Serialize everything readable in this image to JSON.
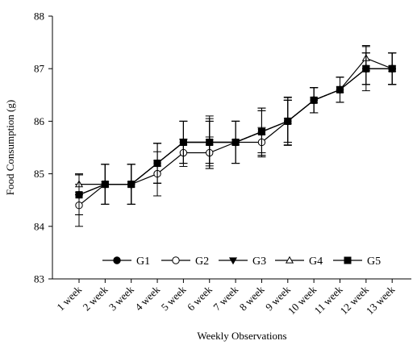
{
  "chart_data": {
    "type": "line",
    "title": "",
    "xlabel": "Weekly Observations",
    "ylabel": "Food Consumption (g)",
    "ylim": [
      83,
      88
    ],
    "yticks": [
      83,
      84,
      85,
      86,
      87,
      88
    ],
    "categories": [
      "1 week",
      "2 week",
      "3 week",
      "4 week",
      "5 week",
      "6 week",
      "7 week",
      "8 week",
      "9 week",
      "10 week",
      "11 week",
      "12 week",
      "13 week"
    ],
    "grid": false,
    "legend_position": "bottom-inside",
    "series": [
      {
        "name": "G1",
        "marker": "filled-circle",
        "values": [
          84.6,
          84.8,
          84.8,
          85.2,
          85.6,
          85.6,
          85.6,
          85.8,
          86.0,
          86.4,
          86.6,
          87.0,
          87.0
        ],
        "error": [
          0.38,
          0.38,
          0.38,
          0.38,
          0.4,
          0.4,
          0.4,
          0.4,
          0.4,
          0.24,
          0.24,
          0.3,
          0.3
        ]
      },
      {
        "name": "G2",
        "marker": "open-circle",
        "values": [
          84.4,
          84.8,
          84.8,
          85.0,
          85.4,
          85.4,
          85.6,
          85.6,
          86.0,
          86.4,
          86.6,
          87.0,
          87.0
        ],
        "error": [
          0.4,
          0.38,
          0.38,
          0.42,
          0.26,
          0.3,
          0.4,
          0.28,
          0.46,
          0.24,
          0.24,
          0.42,
          0.3
        ]
      },
      {
        "name": "G3",
        "marker": "filled-triangle-down",
        "values": [
          84.6,
          84.8,
          84.8,
          85.2,
          85.6,
          85.6,
          85.6,
          85.8,
          86.0,
          86.4,
          86.6,
          87.0,
          87.0
        ],
        "error": [
          0.38,
          0.38,
          0.38,
          0.38,
          0.4,
          0.45,
          0.4,
          0.45,
          0.4,
          0.24,
          0.24,
          0.3,
          0.3
        ]
      },
      {
        "name": "G4",
        "marker": "open-triangle-up",
        "values": [
          84.8,
          84.8,
          84.8,
          85.2,
          85.6,
          85.6,
          85.6,
          85.8,
          86.0,
          86.4,
          86.6,
          87.2,
          87.0
        ],
        "error": [
          0.2,
          0.38,
          0.38,
          0.38,
          0.4,
          0.5,
          0.4,
          0.45,
          0.45,
          0.24,
          0.24,
          0.24,
          0.3
        ]
      },
      {
        "name": "G5",
        "marker": "filled-square",
        "values": [
          84.6,
          84.8,
          84.8,
          85.2,
          85.6,
          85.6,
          85.6,
          85.8,
          86.0,
          86.4,
          86.6,
          87.0,
          87.0
        ],
        "error": [
          0.38,
          0.38,
          0.38,
          0.38,
          0.4,
          0.4,
          0.4,
          0.4,
          0.4,
          0.24,
          0.24,
          0.3,
          0.3
        ]
      }
    ]
  }
}
